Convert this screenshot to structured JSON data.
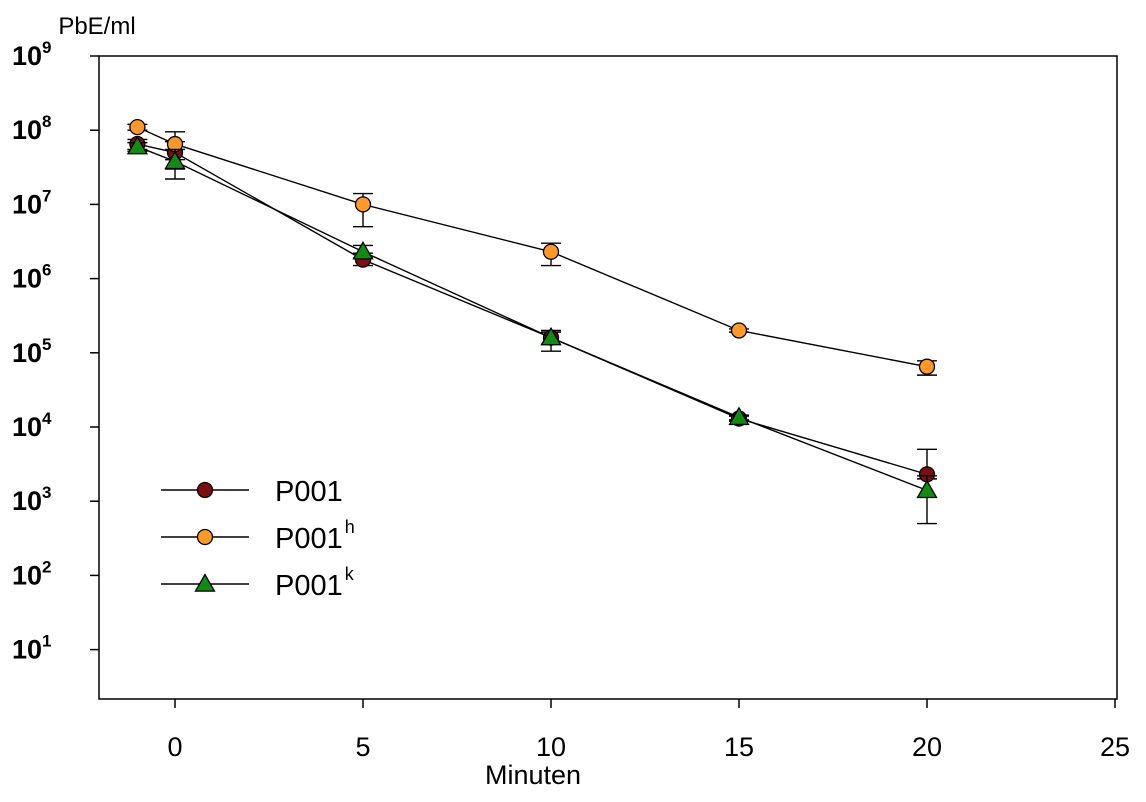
{
  "chart_data": {
    "type": "scatter",
    "xlabel": "Minuten",
    "ylabel": "PbE/ml",
    "yscale": "log",
    "xlim": [
      -2,
      25
    ],
    "ylim_log10": [
      0.2,
      9
    ],
    "xticks": [
      0,
      5,
      10,
      15,
      20,
      25
    ],
    "xtick_labels": [
      "0",
      "5",
      "10",
      "15",
      "20",
      "25"
    ],
    "yticks_log10": [
      1,
      2,
      3,
      4,
      5,
      6,
      7,
      8,
      9
    ],
    "ytick_labels": [
      {
        "base": "10",
        "exp": "1"
      },
      {
        "base": "10",
        "exp": "2"
      },
      {
        "base": "10",
        "exp": "3"
      },
      {
        "base": "10",
        "exp": "4"
      },
      {
        "base": "10",
        "exp": "5"
      },
      {
        "base": "10",
        "exp": "6"
      },
      {
        "base": "10",
        "exp": "7"
      },
      {
        "base": "10",
        "exp": "8"
      },
      {
        "base": "10",
        "exp": "9"
      }
    ],
    "grid": false,
    "legend_position": "bottom-left",
    "series": [
      {
        "name": "P001",
        "name_base": "P001",
        "name_sup": "",
        "marker": "circle",
        "color": "#7b0f0f",
        "points": [
          {
            "x": -1,
            "y": 65000000,
            "err_low": 55000000,
            "err_high": 75000000
          },
          {
            "x": 0,
            "y": 50000000,
            "err_low": 30000000,
            "err_high": 70000000
          },
          {
            "x": 5,
            "y": 1800000,
            "err_low": 1500000,
            "err_high": 2200000
          },
          {
            "x": 10,
            "y": 160000,
            "err_low": 130000,
            "err_high": 190000
          },
          {
            "x": 15,
            "y": 13000,
            "err_low": 12000,
            "err_high": 14000
          },
          {
            "x": 20,
            "y": 2300,
            "err_low": 2000,
            "err_high": 5000
          }
        ]
      },
      {
        "name": "P001h",
        "name_base": "P001",
        "name_sup": "h",
        "marker": "circle",
        "color": "#ff9a2a",
        "points": [
          {
            "x": -1,
            "y": 110000000,
            "err_low": 100000000,
            "err_high": 120000000
          },
          {
            "x": 0,
            "y": 65000000,
            "err_low": 40000000,
            "err_high": 95000000
          },
          {
            "x": 5,
            "y": 10000000,
            "err_low": 5000000,
            "err_high": 14000000
          },
          {
            "x": 10,
            "y": 2300000,
            "err_low": 1500000,
            "err_high": 3000000
          },
          {
            "x": 15,
            "y": 200000,
            "err_low": 190000,
            "err_high": 210000
          },
          {
            "x": 20,
            "y": 65000,
            "err_low": 50000,
            "err_high": 78000
          }
        ]
      },
      {
        "name": "P001k",
        "name_base": "P001",
        "name_sup": "k",
        "marker": "triangle",
        "color": "#138a13",
        "points": [
          {
            "x": -1,
            "y": 60000000,
            "err_low": 52000000,
            "err_high": 68000000
          },
          {
            "x": 0,
            "y": 38000000,
            "err_low": 22000000,
            "err_high": 55000000
          },
          {
            "x": 5,
            "y": 2300000,
            "err_low": 1900000,
            "err_high": 2800000
          },
          {
            "x": 10,
            "y": 160000,
            "err_low": 105000,
            "err_high": 200000
          },
          {
            "x": 15,
            "y": 13500,
            "err_low": 12500,
            "err_high": 14500
          },
          {
            "x": 20,
            "y": 1400,
            "err_low": 500,
            "err_high": 2200
          }
        ]
      }
    ]
  }
}
